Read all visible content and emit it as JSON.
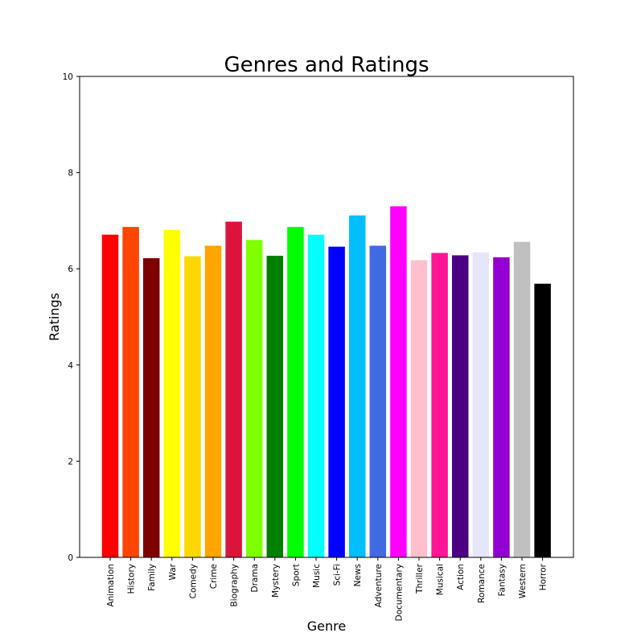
{
  "chart_data": {
    "type": "bar",
    "title": "Genres and Ratings",
    "xlabel": "Genre",
    "ylabel": "Ratings",
    "ylim": [
      0,
      10
    ],
    "yticks": [
      0,
      2,
      4,
      6,
      8,
      10
    ],
    "grid": false,
    "categories": [
      "Animation",
      "History",
      "Family",
      "War",
      "Comedy",
      "Crime",
      "Biography",
      "Drama",
      "Mystery",
      "Sport",
      "Music",
      "Sci-Fi",
      "News",
      "Adventure",
      "Documentary",
      "Thriller",
      "Musical",
      "Action",
      "Romance",
      "Fantasy",
      "Western",
      "Horror"
    ],
    "values": [
      6.71,
      6.87,
      6.22,
      6.81,
      6.26,
      6.48,
      6.98,
      6.6,
      6.27,
      6.87,
      6.71,
      6.46,
      7.11,
      6.48,
      7.3,
      6.18,
      6.33,
      6.28,
      6.34,
      6.24,
      6.56,
      5.69
    ],
    "colors": [
      "#ff0000",
      "#ff4500",
      "#800000",
      "#ffff00",
      "#ffd700",
      "#ffa500",
      "#dc143c",
      "#7fff00",
      "#008000",
      "#00ff00",
      "#00ffff",
      "#0000ff",
      "#00bfff",
      "#4169e1",
      "#ff00ff",
      "#ffc0cb",
      "#ff1493",
      "#4b0082",
      "#e6e6fa",
      "#9400d3",
      "#c0c0c0",
      "#000000"
    ]
  }
}
